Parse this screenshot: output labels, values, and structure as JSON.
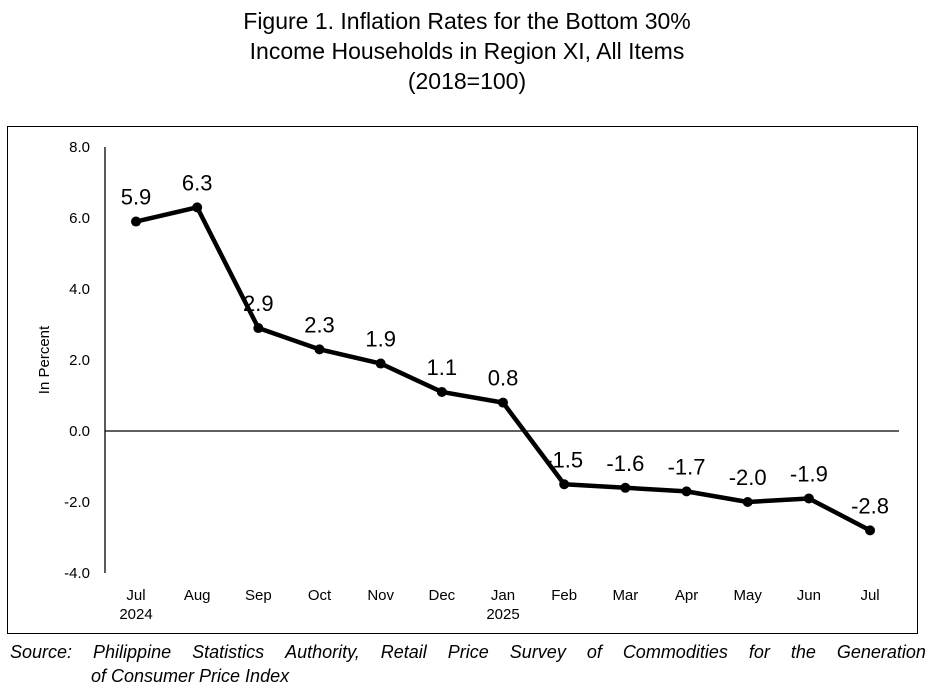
{
  "chart_data": {
    "type": "line",
    "title_lines": [
      "Figure 1. Inflation Rates for the Bottom 30%",
      "Income Households in Region XI, All Items",
      "(2018=100)"
    ],
    "ylabel": "In Percent",
    "xlabel": "",
    "ylim": [
      -4.0,
      8.0
    ],
    "yticks": [
      "8.0",
      "6.0",
      "4.0",
      "2.0",
      "0.0",
      "-2.0",
      "-4.0"
    ],
    "categories": [
      {
        "month": "Jul",
        "year": "2024"
      },
      {
        "month": "Aug",
        "year": ""
      },
      {
        "month": "Sep",
        "year": ""
      },
      {
        "month": "Oct",
        "year": ""
      },
      {
        "month": "Nov",
        "year": ""
      },
      {
        "month": "Dec",
        "year": ""
      },
      {
        "month": "Jan",
        "year": "2025"
      },
      {
        "month": "Feb",
        "year": ""
      },
      {
        "month": "Mar",
        "year": ""
      },
      {
        "month": "Apr",
        "year": ""
      },
      {
        "month": "May",
        "year": ""
      },
      {
        "month": "Jun",
        "year": ""
      },
      {
        "month": "Jul",
        "year": ""
      }
    ],
    "series": [
      {
        "values": [
          5.9,
          6.3,
          2.9,
          2.3,
          1.9,
          1.1,
          0.8,
          -1.5,
          -1.6,
          -1.7,
          -2.0,
          -1.9,
          -2.8
        ],
        "data_labels": [
          "5.9",
          "6.3",
          "2.9",
          "2.3",
          "1.9",
          "1.1",
          "0.8",
          "-1.5",
          "-1.6",
          "-1.7",
          "-2.0",
          "-1.9",
          "-2.8"
        ],
        "color": "#000000"
      }
    ],
    "grid": false,
    "legend": "none"
  },
  "source": {
    "line1_words": [
      "Source:",
      "Philippine",
      "Statistics",
      "Authority,",
      "Retail",
      "Price",
      "Survey",
      "of",
      "Commodities",
      "for",
      "the",
      "Generation"
    ],
    "line2": "of Consumer Price Index"
  }
}
